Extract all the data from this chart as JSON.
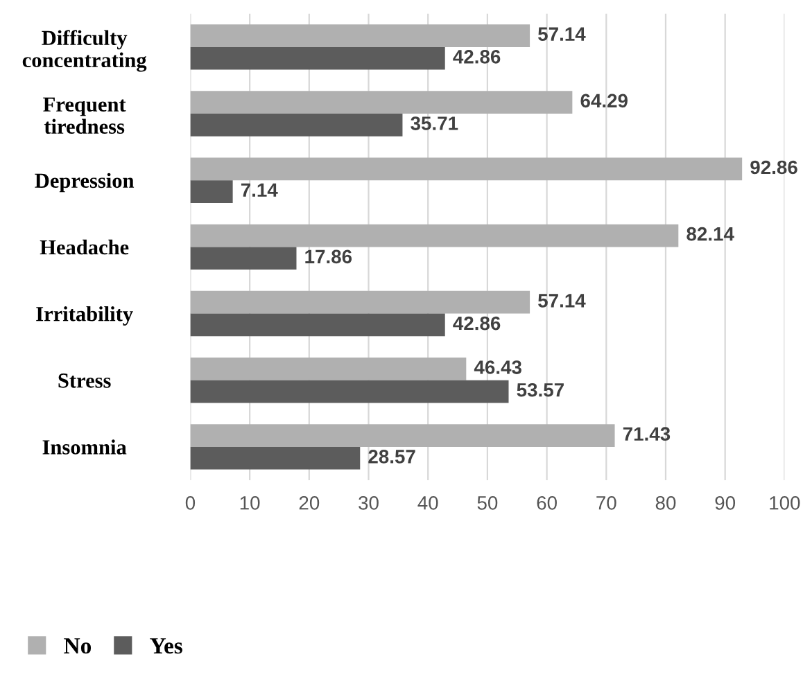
{
  "chart_data": {
    "type": "bar",
    "orientation": "horizontal",
    "categories": [
      "Difficulty\nconcentrating",
      "Frequent\ntiredness",
      "Depression",
      "Headache",
      "Irritability",
      "Stress",
      "Insomnia"
    ],
    "series": [
      {
        "name": "No",
        "color": "#b0b0b0",
        "values": [
          57.14,
          64.29,
          92.86,
          82.14,
          57.14,
          46.43,
          71.43
        ]
      },
      {
        "name": "Yes",
        "color": "#5c5c5c",
        "values": [
          42.86,
          35.71,
          7.14,
          17.86,
          42.86,
          53.57,
          28.57
        ]
      }
    ],
    "xlim": [
      0,
      100
    ],
    "xticks": [
      0,
      10,
      20,
      30,
      40,
      50,
      60,
      70,
      80,
      90,
      100
    ],
    "grid": "x",
    "legend": "bottom left",
    "data_labels": true
  }
}
